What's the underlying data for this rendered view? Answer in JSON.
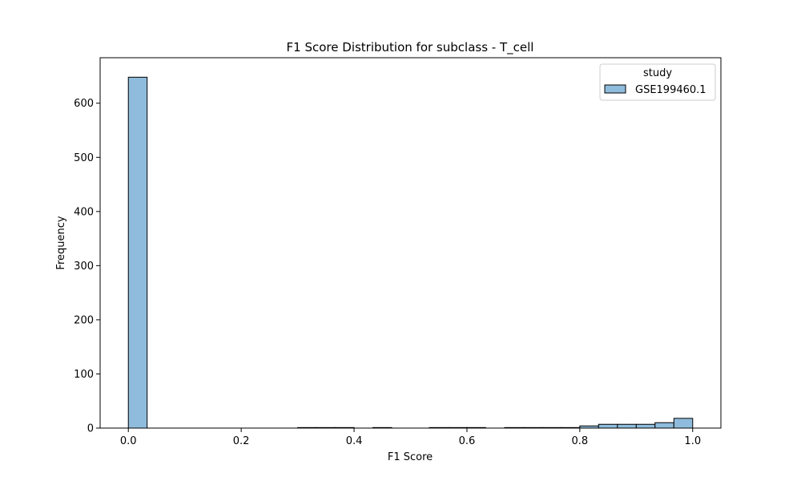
{
  "chart_data": {
    "type": "bar",
    "title": "F1 Score Distribution for subclass - T_cell",
    "xlabel": "F1 Score",
    "ylabel": "Frequency",
    "xlim": [
      -0.05,
      1.05
    ],
    "ylim": [
      0,
      684
    ],
    "xticks": [
      0.0,
      0.2,
      0.4,
      0.6,
      0.8,
      1.0
    ],
    "xtick_labels": [
      "0.0",
      "0.2",
      "0.4",
      "0.6",
      "0.8",
      "1.0"
    ],
    "yticks": [
      0,
      100,
      200,
      300,
      400,
      500,
      600
    ],
    "ytick_labels": [
      "0",
      "100",
      "200",
      "300",
      "400",
      "500",
      "600"
    ],
    "grid": false,
    "legend": {
      "title": "study",
      "position": "upper right",
      "entries": [
        "GSE199460.1"
      ]
    },
    "colors": {
      "bar_fill": "#8fbcdc",
      "bar_edge": "#000000"
    },
    "bins": {
      "edges": [
        0.0,
        0.0333,
        0.0667,
        0.1,
        0.1333,
        0.1667,
        0.2,
        0.2333,
        0.2667,
        0.3,
        0.3333,
        0.3667,
        0.4,
        0.4333,
        0.4667,
        0.5,
        0.5333,
        0.5667,
        0.6,
        0.6333,
        0.6667,
        0.7,
        0.7333,
        0.7667,
        0.8,
        0.8333,
        0.8667,
        0.9,
        0.9333,
        0.9667,
        1.0
      ],
      "counts": [
        648,
        0,
        0,
        0,
        0,
        0,
        0,
        0,
        0,
        1,
        1,
        1,
        0,
        1,
        0,
        0,
        1,
        1,
        1,
        0,
        1,
        1,
        1,
        1,
        4,
        7,
        7,
        7,
        10,
        18
      ]
    },
    "series": [
      {
        "name": "GSE199460.1"
      }
    ]
  }
}
